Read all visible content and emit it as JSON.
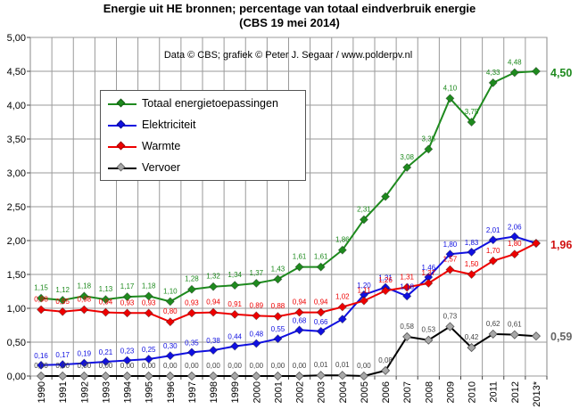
{
  "title_line1": "Energie uit HE bronnen; percentage van totaal eindverbruik  energie",
  "title_line2": "(CBS 19 mei 2014)",
  "credit": "Data © CBS; grafiek © Peter J. Segaar / www.polderpv.nl",
  "chart_data": {
    "type": "line",
    "title": "Energie uit HE bronnen; percentage van totaal eindverbruik  energie (CBS 19 mei 2014)",
    "categories": [
      "1990",
      "1991",
      "1992",
      "1993",
      "1994",
      "1995",
      "1996",
      "1997",
      "1998",
      "1999",
      "2000",
      "2001",
      "2002",
      "2003",
      "2004",
      "2005",
      "2006",
      "2007",
      "2008",
      "2009",
      "2010",
      "2011",
      "2012",
      "2013*"
    ],
    "ylim": [
      0,
      5
    ],
    "yticks": [
      "0,00",
      "0,50",
      "1,00",
      "1,50",
      "2,00",
      "2,50",
      "3,00",
      "3,50",
      "4,00",
      "4,50",
      "5,00"
    ],
    "grid": true,
    "legend_position": "upper-left",
    "series": [
      {
        "name": "Totaal energietoepassingen",
        "color": "#1e8a1e",
        "values": [
          1.15,
          1.12,
          1.18,
          1.13,
          1.17,
          1.18,
          1.1,
          1.28,
          1.32,
          1.34,
          1.37,
          1.43,
          1.61,
          1.61,
          1.86,
          2.31,
          2.65,
          3.08,
          3.35,
          4.1,
          3.75,
          4.33,
          4.48,
          4.5
        ],
        "labels": [
          "1,15",
          "1,12",
          "1,18",
          "1,13",
          "1,17",
          "1,18",
          "1,10",
          "1,28",
          "1,32",
          "1,34",
          "1,37",
          "1,43",
          "1,61",
          "1,61",
          "1,86",
          "2,31",
          "",
          "3,08",
          "3,35",
          "4,10",
          "3,75",
          "4,33",
          "4,48",
          ""
        ],
        "end_label": "4,50"
      },
      {
        "name": "Elektriciteit",
        "color": "#1010e0",
        "values": [
          0.16,
          0.17,
          0.19,
          0.21,
          0.23,
          0.25,
          0.3,
          0.35,
          0.38,
          0.44,
          0.48,
          0.55,
          0.68,
          0.66,
          0.84,
          1.2,
          1.31,
          1.18,
          1.46,
          1.8,
          1.83,
          2.01,
          2.06,
          1.96
        ],
        "labels": [
          "0,16",
          "0,17",
          "0,19",
          "0,21",
          "0,23",
          "0,25",
          "0,30",
          "0,35",
          "0,38",
          "0,44",
          "0,48",
          "0,55",
          "0,68",
          "0,66",
          "",
          "1,20",
          "1,31",
          "1,18",
          "1,46",
          "1,80",
          "1,83",
          "2,01",
          "2,06",
          ""
        ],
        "end_label": "1,96"
      },
      {
        "name": "Warmte",
        "color": "#ee0000",
        "values": [
          0.98,
          0.95,
          0.98,
          0.94,
          0.93,
          0.93,
          0.8,
          0.93,
          0.94,
          0.91,
          0.89,
          0.88,
          0.94,
          0.94,
          1.02,
          1.11,
          1.26,
          1.31,
          1.37,
          1.57,
          1.5,
          1.7,
          1.8,
          1.96
        ],
        "labels": [
          "0,98",
          "0,95",
          "0,98",
          "0,94",
          "0,93",
          "0,93",
          "0,80",
          "0,93",
          "0,94",
          "0,91",
          "0,89",
          "0,88",
          "0,94",
          "0,94",
          "1,02",
          "1,11",
          "1,26",
          "1,31",
          "1,37",
          "1,57",
          "1,50",
          "1,70",
          "1,80",
          ""
        ],
        "end_label": "1,96"
      },
      {
        "name": "Vervoer",
        "color": "#000000",
        "values": [
          0,
          0,
          0,
          0,
          0,
          0,
          0,
          0,
          0,
          0,
          0,
          0,
          0,
          0.01,
          0.01,
          0,
          0.08,
          0.58,
          0.53,
          0.73,
          0.42,
          0.62,
          0.61,
          0.59
        ],
        "labels": [
          "0,00",
          "0,00",
          "0,00",
          "0,00",
          "0,00",
          "0,00",
          "0,00",
          "0,00",
          "0,00",
          "0,00",
          "0,00",
          "0,00",
          "0,00",
          "0,01",
          "0,01",
          "0,00",
          "0,08",
          "0,58",
          "0,53",
          "0,73",
          "0,42",
          "0,62",
          "0,61",
          ""
        ],
        "end_label": "0,59"
      }
    ]
  }
}
